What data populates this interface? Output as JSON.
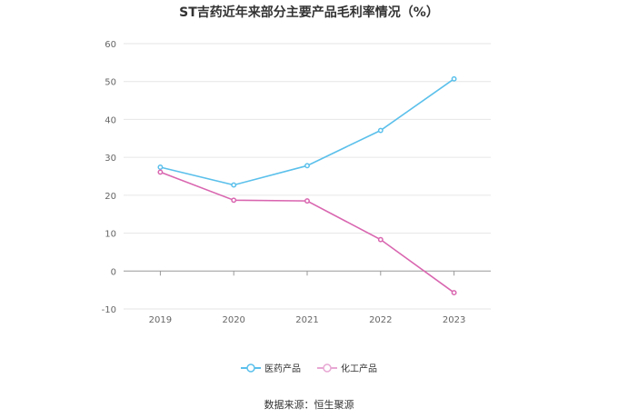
{
  "page": {
    "title": "ST吉药近年来部分主要产品毛利率情况（%）",
    "source": "数据来源：恒生聚源"
  },
  "chart_data": {
    "type": "line",
    "title": "ST吉药近年来部分主要产品毛利率情况（%）",
    "x": [
      "2019",
      "2020",
      "2021",
      "2022",
      "2023"
    ],
    "yticks": [
      60,
      50,
      40,
      30,
      20,
      10,
      0,
      -10
    ],
    "ylim": [
      -10,
      60
    ],
    "grid": true,
    "legend_position": "bottom",
    "series": [
      {
        "name": "医药产品",
        "color": "#5bc0eb",
        "values": [
          27.4,
          22.7,
          27.8,
          37.1,
          50.7
        ]
      },
      {
        "name": "化工产品",
        "color": "#d966b0",
        "values": [
          26.1,
          18.7,
          18.5,
          8.3,
          -5.7
        ]
      }
    ]
  }
}
